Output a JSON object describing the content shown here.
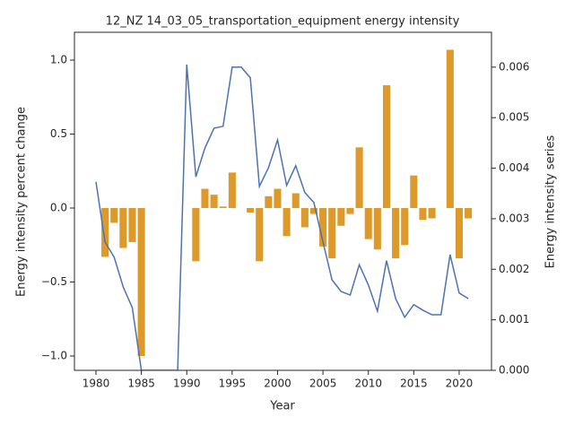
{
  "chart_data": {
    "type": "bar_line",
    "title": "12_NZ 14_03_05_transportation_equipment energy intensity",
    "xlabel": "Year",
    "ylabel": "Energy intensity percent change",
    "y2label": "Energy intensity series",
    "x": [
      1980,
      1981,
      1982,
      1983,
      1984,
      1985,
      1986,
      1987,
      1988,
      1989,
      1990,
      1991,
      1992,
      1993,
      1994,
      1995,
      1996,
      1997,
      1998,
      1999,
      2000,
      2001,
      2002,
      2003,
      2004,
      2005,
      2006,
      2007,
      2008,
      2009,
      2010,
      2011,
      2012,
      2013,
      2014,
      2015,
      2016,
      2017,
      2018,
      2019,
      2020,
      2021
    ],
    "series": [
      {
        "name": "Energy intensity percent change",
        "type": "bar",
        "axis": "y",
        "color": "#dd9a2a",
        "values": [
          null,
          -0.33,
          -0.1,
          -0.27,
          -0.23,
          -1.0,
          null,
          null,
          null,
          null,
          null,
          -0.36,
          0.13,
          0.09,
          0.01,
          0.24,
          0,
          -0.03,
          -0.36,
          0.08,
          0.13,
          -0.19,
          0.1,
          -0.13,
          -0.04,
          -0.26,
          -0.34,
          -0.12,
          -0.04,
          0.41,
          -0.21,
          -0.28,
          0.83,
          -0.34,
          -0.25,
          0.22,
          -0.08,
          -0.07,
          0,
          1.07,
          -0.34,
          -0.07
        ]
      },
      {
        "name": "Energy intensity series",
        "type": "line",
        "axis": "y2",
        "color": "#4c72b0",
        "values": [
          0.00373,
          0.00254,
          0.00224,
          0.00165,
          0.00124,
          0,
          0,
          0,
          0,
          0,
          0.00605,
          0.00383,
          0.0044,
          0.00479,
          0.00483,
          0.006,
          0.006,
          0.00579,
          0.00364,
          0.00401,
          0.00456,
          0.00366,
          0.00405,
          0.00352,
          0.00332,
          0.00254,
          0.00179,
          0.00156,
          0.00149,
          0.00209,
          0.00169,
          0.00117,
          0.00217,
          0.00142,
          0.00105,
          0.0013,
          0.00119,
          0.0011,
          0.0011,
          0.00229,
          0.00153,
          0.00142
        ]
      }
    ],
    "xlim": [
      1977.63,
      2023.56
    ],
    "xticks": [
      1980,
      1985,
      1990,
      1995,
      2000,
      2005,
      2010,
      2015,
      2020
    ],
    "ylim": [
      -1.097,
      1.188
    ],
    "yticks": [
      {
        "value": -1,
        "label": "−1.0"
      },
      {
        "value": -0.5,
        "label": "−0.5"
      },
      {
        "value": 0,
        "label": "0.0"
      },
      0.5,
      {
        "value": 1,
        "label": "1.0"
      }
    ],
    "y2lim": [
      0,
      0.00669
    ],
    "y2ticks": [
      {
        "value": 0,
        "label": "0.000"
      },
      {
        "value": 0.001,
        "label": "0.001"
      },
      {
        "value": 0.002,
        "label": "0.002"
      },
      {
        "value": 0.003,
        "label": "0.003"
      },
      {
        "value": 0.004,
        "label": "0.004"
      },
      {
        "value": 0.005,
        "label": "0.005"
      },
      {
        "value": 0.006,
        "label": "0.006"
      }
    ]
  }
}
